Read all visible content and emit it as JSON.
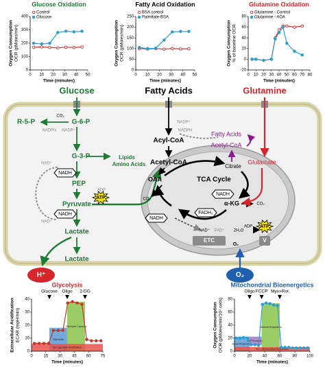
{
  "chart_data": [
    {
      "type": "line",
      "title": "Glucose Oxidation",
      "title_color": "#1e7b34",
      "ylabel": [
        "Oxygen Consumption",
        "OCR (pMoles/min)"
      ],
      "xlabel": "Time (minutes)",
      "x": [
        3,
        10,
        17,
        24,
        31,
        38,
        45
      ],
      "xlim": [
        0,
        50
      ],
      "xticks": [
        0,
        10,
        20,
        30,
        40,
        50
      ],
      "ylim": [
        0,
        400
      ],
      "yticks": [
        0,
        100,
        200,
        300,
        400
      ],
      "series": [
        {
          "name": "Control",
          "color": "#d62728",
          "filled": false,
          "values": [
            170,
            172,
            168,
            165,
            170,
            168,
            172
          ]
        },
        {
          "name": "Glucose",
          "color": "#2a9fd6",
          "filled": true,
          "values": [
            200,
            195,
            200,
            280,
            290,
            285,
            290
          ]
        }
      ]
    },
    {
      "type": "line",
      "title": "Fatty Acid Oxidation",
      "title_color": "#000000",
      "ylabel": [
        "Oxygen Consumption",
        "OCR (pMoles/min)"
      ],
      "xlabel": "Time (minutes)",
      "x": [
        3,
        10,
        17,
        24,
        31,
        38,
        45
      ],
      "xlim": [
        0,
        50
      ],
      "xticks": [
        0,
        10,
        20,
        30,
        40,
        50
      ],
      "ylim": [
        0,
        250
      ],
      "yticks": [
        0,
        50,
        100,
        150,
        200,
        250
      ],
      "series": [
        {
          "name": "BSA control",
          "color": "#d62728",
          "filled": false,
          "values": [
            100,
            98,
            100,
            97,
            100,
            98,
            99
          ]
        },
        {
          "name": "Palmitate-BSA",
          "color": "#2a9fd6",
          "filled": true,
          "values": [
            105,
            100,
            102,
            140,
            178,
            180,
            180
          ]
        }
      ]
    },
    {
      "type": "line",
      "title": "Glutamine Oxidation",
      "title_color": "#d7262b",
      "ylabel": [
        "Oxygen Consumption",
        "% of baseline OCR"
      ],
      "xlabel": "Time (minutes)",
      "x": [
        5,
        10,
        20,
        30,
        35,
        40,
        45,
        50,
        60,
        70
      ],
      "xlim": [
        0,
        80
      ],
      "xticks": [
        0,
        10,
        20,
        30,
        40,
        50,
        60,
        70,
        80
      ],
      "ylim": [
        -20,
        80
      ],
      "yticks": [
        -20,
        0,
        20,
        40,
        60,
        80
      ],
      "series": [
        {
          "name": "Glutamine - Control",
          "color": "#d62728",
          "filled": false,
          "values": [
            0,
            0,
            -2,
            0,
            40,
            55,
            62,
            62,
            60,
            62
          ]
        },
        {
          "name": "Glutamine - AOA",
          "color": "#2a9fd6",
          "filled": true,
          "values": [
            0,
            0,
            -2,
            0,
            38,
            50,
            60,
            30,
            15,
            8
          ]
        }
      ]
    },
    {
      "type": "line",
      "title": "Glycolysis",
      "title_color": "#d7262b",
      "ylabel": [
        "Extracellular Acidification",
        "ECAR (mpH/min)"
      ],
      "xlabel": "Time (minutes)",
      "annotations": [
        "Glucose",
        "Oligo",
        "2-DG"
      ],
      "region_labels": [
        "Glycolysis",
        "Glycolytic Capacity",
        "Non-glycolytic Acidification"
      ],
      "x": [
        3,
        8,
        13,
        18,
        23,
        28,
        33,
        38,
        43,
        48,
        53,
        58,
        63,
        68,
        73
      ],
      "xlim": [
        0,
        75
      ],
      "xticks": [
        0,
        15,
        30,
        45,
        60,
        75
      ],
      "ylim": [
        0,
        40
      ],
      "yticks": [
        0,
        10,
        20,
        30,
        40
      ],
      "series": [
        {
          "color": "#c0392b",
          "filled": true,
          "values": [
            6,
            6,
            6,
            6,
            16,
            16,
            16,
            37,
            38,
            37,
            36,
            9,
            8,
            8,
            8
          ]
        }
      ]
    },
    {
      "type": "line",
      "title": "Mitochondrial Bioenergetics",
      "title_color": "#1f5fad",
      "ylabel": [
        "Oxygen Consumption",
        "OCR (pMoles/min/10⁴ cells)"
      ],
      "xlabel": "Time (minutes)",
      "annotations": [
        "Oligo",
        "FCCP",
        "Myx+Rot"
      ],
      "region_labels": [
        "Basal Respiration",
        "ATP Production",
        "Maximal Respiration",
        "Non-mitochondrial Respiration"
      ],
      "x": [
        2,
        7,
        12,
        17,
        22,
        27,
        32,
        37,
        42,
        47,
        52,
        57,
        62,
        67,
        72,
        77,
        82,
        87,
        92,
        97
      ],
      "xlim": [
        0,
        100
      ],
      "xticks": [
        0,
        20,
        40,
        60,
        80,
        100
      ],
      "ylim": [
        0,
        80
      ],
      "yticks": [
        0,
        20,
        40,
        60,
        80
      ],
      "series": [
        {
          "color": "#2a9fd6",
          "filled": true,
          "values": [
            20,
            20,
            21,
            20,
            10,
            10,
            9,
            72,
            74,
            73,
            71,
            70,
            6,
            6,
            6,
            5,
            5,
            5,
            5,
            5
          ]
        }
      ]
    }
  ],
  "diagram": {
    "headers": {
      "glucose": "Glucose",
      "fatty_acids": "Fatty Acids",
      "glutamine": "Glutamine"
    },
    "labels": {
      "r5p": "R-5-P",
      "g6p": "G-6-P",
      "co2_ppp": "CO₂",
      "nadph_ppp": "NADPH",
      "nadp_ppp": "NADP⁺",
      "g3p": "G-3-P",
      "lipids": "Lipids",
      "amino": "Amino Acids",
      "nad1": "NAD⁺",
      "nadh1": "NADH",
      "pep": "PEP",
      "adp1": "ADP",
      "atp1": "ATP",
      "pyruvate": "Pyruvate",
      "nadh2": "NADH",
      "nad2": "NAD⁺",
      "lactate_in": "Lactate",
      "lactate_out": "Lactate",
      "h": "H⁺",
      "acyl": "Acyl-CoA",
      "acetyl": "Acetyl-CoA",
      "fa_out": "Fatty Acids",
      "nadp_fa": "NADP⁺",
      "nadph_fa": "NADPH",
      "acetyl_cyt": "Acetyl-CoA",
      "glutamate": "Glutamate",
      "oaa": "OAA",
      "tca": "TCA Cycle",
      "citrate": "Citrate",
      "co2_pdh": "CO₂",
      "nadh3": "NADH",
      "co2_kg": "CO₂",
      "akg": "α-KG",
      "fadh": "FADH₂",
      "nadh4": "NADH",
      "nad3": "NAD⁺",
      "fad": "FAD⁺",
      "h2o": "2H₂O",
      "etc": "ETC",
      "o2_in": "O₂",
      "adp2": "ADP",
      "atp2": "ATP",
      "v": "V",
      "o2_out": "O₂"
    }
  }
}
